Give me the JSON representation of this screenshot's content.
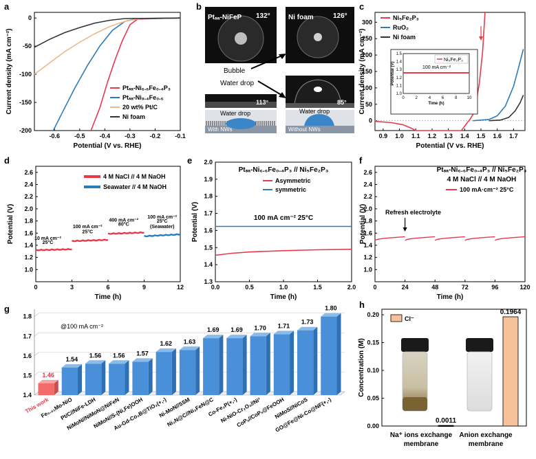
{
  "panels": {
    "a": {
      "label": "a",
      "chart_data": {
        "type": "line",
        "xlabel": "Potential (V vs. RHE)",
        "ylabel": "Current density (mA cm⁻²)",
        "xlim": [
          -0.68,
          -0.1
        ],
        "ylim": [
          -200,
          10
        ],
        "xticks": [
          -0.6,
          -0.5,
          -0.4,
          -0.3,
          -0.2,
          -0.1
        ],
        "yticks": [
          0,
          -50,
          -100,
          -150,
          -200
        ],
        "xtick_labels": [
          "-0.6",
          "-0.5",
          "-0.4",
          "-0.3",
          "-0.2",
          "-0.1"
        ],
        "ytick_labels": [
          "0",
          "-50",
          "-100",
          "-150",
          "-200"
        ],
        "series": [
          {
            "name": "Ptₛₐ-Ni₆.₆Fe₀.₄P₃",
            "legend": "PtSA-Ni6.6Fe0.4P3",
            "color": "#e8394b",
            "points": [
              [
                -0.455,
                -200
              ],
              [
                -0.42,
                -160
              ],
              [
                -0.39,
                -115
              ],
              [
                -0.36,
                -75
              ],
              [
                -0.33,
                -40
              ],
              [
                -0.3,
                -12
              ],
              [
                -0.27,
                -2
              ],
              [
                -0.1,
                0
              ]
            ]
          },
          {
            "name": "Ptₛₐ-Ni₉.₄Fe₀.₆",
            "legend": "PtSA-Ni9.4Fe0.6",
            "color": "#2b7bb9",
            "points": [
              [
                -0.605,
                -200
              ],
              [
                -0.56,
                -160
              ],
              [
                -0.52,
                -125
              ],
              [
                -0.47,
                -85
              ],
              [
                -0.42,
                -50
              ],
              [
                -0.37,
                -22
              ],
              [
                -0.32,
                -6
              ],
              [
                -0.27,
                -1
              ],
              [
                -0.1,
                0
              ]
            ]
          },
          {
            "name": "20 wt% Pt/C",
            "legend": "20 wt% Pt/C",
            "color": "#f0b888",
            "points": [
              [
                -0.68,
                -100
              ],
              [
                -0.62,
                -80
              ],
              [
                -0.56,
                -60
              ],
              [
                -0.5,
                -43
              ],
              [
                -0.44,
                -28
              ],
              [
                -0.38,
                -15
              ],
              [
                -0.32,
                -6
              ],
              [
                -0.26,
                -1
              ],
              [
                -0.1,
                0
              ]
            ]
          },
          {
            "name": "Ni foam",
            "legend": "Ni foam",
            "color": "#333333",
            "points": [
              [
                -0.68,
                -52
              ],
              [
                -0.62,
                -38
              ],
              [
                -0.56,
                -26
              ],
              [
                -0.5,
                -17
              ],
              [
                -0.44,
                -9
              ],
              [
                -0.38,
                -4
              ],
              [
                -0.32,
                -1
              ],
              [
                -0.1,
                0
              ]
            ]
          }
        ]
      }
    },
    "b": {
      "label": "b",
      "photos": {
        "top_left_title": "Ptₛₐ-NiFeP",
        "top_left_angle": "132°",
        "top_right_title": "Ni foam",
        "top_right_angle": "126°",
        "bottom_left_angle": "113°",
        "bottom_right_angle": "85°",
        "bubble_label": "Bubble",
        "water_drop_label": "Water drop",
        "schematic_left_drop": "Water drop",
        "schematic_right_drop": "Water drop",
        "schematic_left_caption": "With NWs",
        "schematic_right_caption": "Without NWs"
      }
    },
    "c": {
      "label": "c",
      "chart_data": {
        "type": "line",
        "xlabel": "Potential (V vs. RHE)",
        "ylabel": "Current density (mA cm⁻²)",
        "xlim": [
          0.85,
          1.77
        ],
        "ylim": [
          -30,
          330
        ],
        "xticks": [
          0.9,
          1.0,
          1.1,
          1.2,
          1.3,
          1.4,
          1.5,
          1.6,
          1.7
        ],
        "yticks": [
          0,
          50,
          100,
          150,
          200,
          250,
          300
        ],
        "xtick_labels": [
          "0.9",
          "1.0",
          "1.1",
          "1.2",
          "1.3",
          "1.4",
          "1.5",
          "1.6",
          "1.7"
        ],
        "ytick_labels": [
          "0",
          "50",
          "100",
          "150",
          "200",
          "250",
          "300"
        ],
        "series": [
          {
            "name": "Ni₅Fe₂P₃",
            "legend": "Ni5Fe2P3",
            "color": "#e8394b",
            "points": [
              [
                0.85,
                -2
              ],
              [
                0.95,
                -6
              ],
              [
                1.02,
                -12
              ],
              [
                1.07,
                -22
              ],
              [
                1.1,
                -30
              ],
              [
                1.38,
                -30
              ],
              [
                1.42,
                -3
              ],
              [
                1.43,
                2
              ],
              [
                1.45,
                18
              ],
              [
                1.47,
                55
              ],
              [
                1.49,
                115
              ],
              [
                1.51,
                210
              ],
              [
                1.525,
                330
              ]
            ]
          },
          {
            "name": "RuO₂",
            "legend": "RuO2",
            "color": "#2b7bb9",
            "points": [
              [
                1.45,
                0
              ],
              [
                1.55,
                4
              ],
              [
                1.6,
                15
              ],
              [
                1.65,
                45
              ],
              [
                1.7,
                105
              ],
              [
                1.73,
                160
              ],
              [
                1.76,
                218
              ]
            ]
          },
          {
            "name": "Ni foam",
            "legend": "Ni foam",
            "color": "#333333",
            "points": [
              [
                1.55,
                0
              ],
              [
                1.62,
                2
              ],
              [
                1.67,
                10
              ],
              [
                1.71,
                30
              ],
              [
                1.74,
                55
              ],
              [
                1.76,
                78
              ]
            ]
          }
        ],
        "inset": {
          "legend": "Ni₅Fe₂P₃",
          "annotation": "100 mA cm⁻²",
          "xlabel": "Time (h)",
          "ylabel": "Potential (V)",
          "xlim": [
            0,
            10
          ],
          "ylim": [
            1.0,
            1.5
          ],
          "xticks": [
            0,
            2,
            4,
            6,
            8,
            10
          ],
          "yticks": [
            1.0,
            1.1,
            1.2,
            1.3,
            1.4,
            1.5
          ],
          "xtick_labels": [
            "0",
            "2",
            "4",
            "6",
            "8",
            "10"
          ],
          "ytick_labels": [
            "1.0",
            "1.1",
            "1.2",
            "1.3",
            "1.4",
            "1.5"
          ],
          "value": 1.52
        }
      }
    },
    "d": {
      "label": "d",
      "chart_data": {
        "type": "line",
        "xlabel": "Time (h)",
        "ylabel": "Potential (V)",
        "xlim": [
          0,
          12
        ],
        "ylim": [
          0.8,
          2.7
        ],
        "xticks": [
          0,
          3,
          6,
          9,
          12
        ],
        "yticks": [
          1.0,
          1.2,
          1.4,
          1.6,
          1.8,
          2.0,
          2.2,
          2.4,
          2.6
        ],
        "xtick_labels": [
          "0",
          "3",
          "6",
          "9",
          "12"
        ],
        "ytick_labels": [
          "1.0",
          "1.2",
          "1.4",
          "1.6",
          "1.8",
          "2.0",
          "2.2",
          "2.4",
          "2.6"
        ],
        "legend": [
          "4 M NaCl // 4 M NaOH",
          "Seawater // 4 M NaOH"
        ],
        "colors": [
          "#e8394b",
          "#2b7bb9"
        ],
        "segments": [
          {
            "series": 0,
            "t0": 0,
            "t1": 3,
            "v0": 1.32,
            "v1": 1.335
          },
          {
            "series": 0,
            "t0": 3,
            "t1": 6,
            "v0": 1.47,
            "v1": 1.49
          },
          {
            "series": 0,
            "t0": 6,
            "t1": 9,
            "v0": 1.59,
            "v1": 1.61
          },
          {
            "series": 1,
            "t0": 9,
            "t1": 12,
            "v0": 1.55,
            "v1": 1.58
          }
        ],
        "annotations": [
          {
            "text": "10 mA cm⁻²",
            "t": 1.0,
            "v": 1.49
          },
          {
            "text": "25°C",
            "t": 1.0,
            "v": 1.42
          },
          {
            "text": "100 mA cm⁻²",
            "t": 4.3,
            "v": 1.68
          },
          {
            "text": "25°C",
            "t": 4.3,
            "v": 1.6
          },
          {
            "text": "400 mA cm⁻²",
            "t": 7.3,
            "v": 1.79
          },
          {
            "text": "80°C",
            "t": 7.3,
            "v": 1.72
          },
          {
            "text": "100 mA cm⁻²",
            "t": 10.5,
            "v": 1.84
          },
          {
            "text": "25°C",
            "t": 10.5,
            "v": 1.77
          },
          {
            "text": "(Seawater)",
            "t": 10.5,
            "v": 1.68
          }
        ]
      }
    },
    "e": {
      "label": "e",
      "chart_data": {
        "type": "line",
        "title": "Ptₛₐ-Ni₆.₆Fe₀.₄P₃ // Ni₅Fe₂P₃",
        "xlabel": "Time (h)",
        "ylabel": "Potential (V)",
        "xlim": [
          0,
          2
        ],
        "ylim": [
          1.3,
          2.0
        ],
        "xticks": [
          0.0,
          0.5,
          1.0,
          1.5,
          2.0
        ],
        "yticks": [
          1.3,
          1.4,
          1.5,
          1.6,
          1.7,
          1.8,
          1.9,
          2.0
        ],
        "xtick_labels": [
          "0.0",
          "0.5",
          "1.0",
          "1.5",
          "2.0"
        ],
        "ytick_labels": [
          "1.3",
          "1.4",
          "1.5",
          "1.6",
          "1.7",
          "1.8",
          "1.9",
          "2.0"
        ],
        "annotation": "100 mA cm⁻²  25°C",
        "series": [
          {
            "name": "Asymmetric",
            "color": "#e8394b",
            "points": [
              [
                0,
                1.455
              ],
              [
                0.25,
                1.467
              ],
              [
                0.5,
                1.474
              ],
              [
                1.0,
                1.482
              ],
              [
                1.5,
                1.487
              ],
              [
                2.0,
                1.49
              ]
            ]
          },
          {
            "name": "symmetric",
            "color": "#2b7bb9",
            "points": [
              [
                0,
                1.624
              ],
              [
                2.0,
                1.624
              ]
            ]
          }
        ]
      }
    },
    "f": {
      "label": "f",
      "chart_data": {
        "type": "line",
        "title": "Ptₛₐ-Ni₆.₆Fe₀.₄P₃ // Ni₅Fe₂P₃",
        "subtitle": "4 M NaCl // 4 M NaOH",
        "legend": "100 mA·cm⁻²  25°C",
        "xlabel": "Time (h)",
        "ylabel": "Potential (V)",
        "xlim": [
          0,
          120
        ],
        "ylim": [
          0.8,
          2.7
        ],
        "xticks": [
          0,
          24,
          48,
          72,
          96,
          120
        ],
        "yticks": [
          1.0,
          1.2,
          1.4,
          1.6,
          1.8,
          2.0,
          2.2,
          2.4,
          2.6
        ],
        "xtick_labels": [
          "0",
          "24",
          "48",
          "72",
          "96",
          "120"
        ],
        "ytick_labels": [
          "1.0",
          "1.2",
          "1.4",
          "1.6",
          "1.8",
          "2.0",
          "2.2",
          "2.4",
          "2.6"
        ],
        "annotation": "Refresh electrolyte",
        "annotation_t": 24,
        "color": "#e8394b",
        "cycles": [
          [
            0,
            24
          ],
          [
            24,
            48
          ],
          [
            48,
            72
          ],
          [
            72,
            96
          ],
          [
            96,
            120
          ]
        ],
        "v_start": 1.48,
        "v_end": 1.54
      }
    },
    "g": {
      "label": "g",
      "chart_data": {
        "type": "bar",
        "annotation": "@100 mA cm⁻²",
        "ylim": [
          1.4,
          1.82
        ],
        "yticks": [
          1.4,
          1.5,
          1.6,
          1.7,
          1.8
        ],
        "ytick_labels": [
          "1.4",
          "1.5",
          "1.6",
          "1.7",
          "1.8"
        ],
        "categories": [
          "This work",
          "Fe₀.₀₁Mo-NiO",
          "Pt/C//NiFe-LDH",
          "NiMoN//NiMoN@NiFeN",
          "NiMoN//S-(Ni,Fe)OOH",
          "Au-Gd-Co₂B@TiO₂(+,-)",
          "Ni-MoN//SSM",
          "Ni₃N@C//Ni₃FeN@C",
          "Co-Fe₂P(+,-)",
          "Ni-NiO-Cr₂O₃//Ni³",
          "CoPₓ//CoPₓ@FeOOH",
          "NiMoS//NiCoS",
          "GO@Fe@Ni-Co@NF(+,-)"
        ],
        "values": [
          1.46,
          1.54,
          1.56,
          1.56,
          1.57,
          1.62,
          1.63,
          1.69,
          1.69,
          1.7,
          1.71,
          1.73,
          1.8
        ],
        "value_labels": [
          "1.46",
          "1.54",
          "1.56",
          "1.56",
          "1.57",
          "1.62",
          "1.63",
          "1.69",
          "1.69",
          "1.70",
          "1.71",
          "1.73",
          "1.80"
        ],
        "highlight_color": "#f26b6b",
        "bar_color": "#4a90d9"
      }
    },
    "h": {
      "label": "h",
      "chart_data": {
        "type": "bar",
        "ylabel": "Concentration (M)",
        "ylim": [
          0,
          0.21
        ],
        "yticks": [
          0.0,
          0.05,
          0.1,
          0.15,
          0.2
        ],
        "ytick_labels": [
          "0.00",
          "0.05",
          "0.10",
          "0.15",
          "0.20"
        ],
        "legend": "Cl⁻",
        "categories": [
          "Na⁺ ions exchange membrane",
          "Anion exchange membrane"
        ],
        "category_lines": [
          [
            "Na⁺ ions exchange",
            "membrane"
          ],
          [
            "Anion exchange",
            "membrane"
          ]
        ],
        "values": [
          0.0011,
          0.1964
        ],
        "value_labels": [
          "0.0011",
          "0.1964"
        ],
        "bar_color": "#f7c29a"
      }
    }
  }
}
